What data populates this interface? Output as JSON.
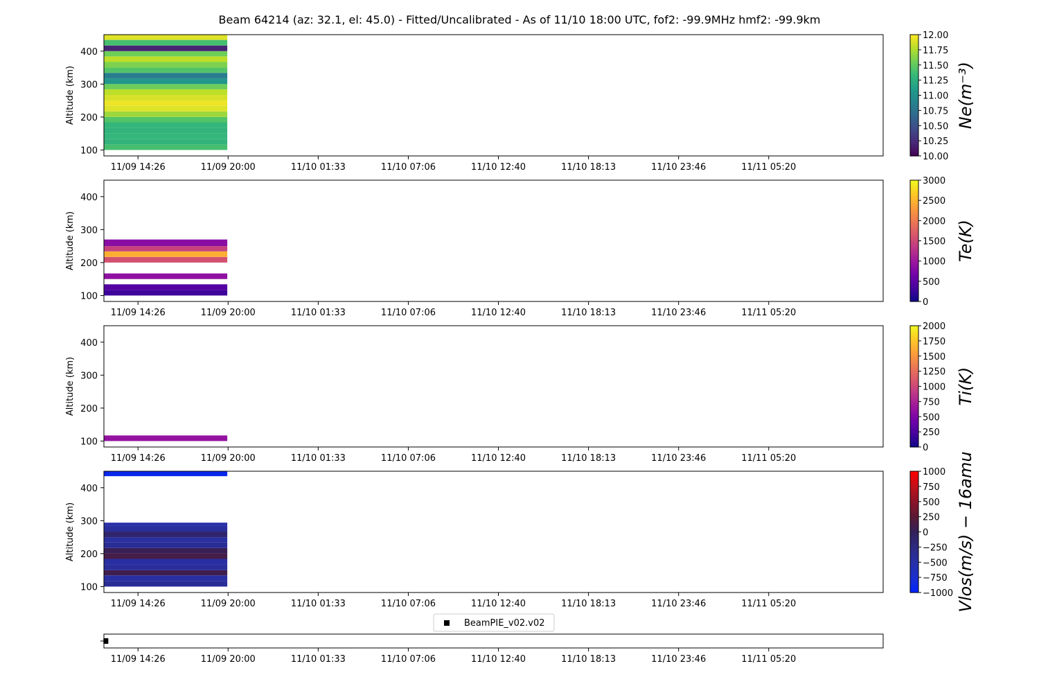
{
  "chart_data": {
    "type": "heatmap",
    "title": "Beam 64214 (az: 32.1, el: 45.0) - Fitted/Uncalibrated - As of 11/10 18:00 UTC, fof2: -99.9MHz  hmf2: -99.9km",
    "x_tick_labels": [
      "11/09 14:26",
      "11/09 20:00",
      "11/10 01:33",
      "11/10 07:06",
      "11/10 12:40",
      "11/10 18:13",
      "11/10 23:46",
      "11/11 05:20"
    ],
    "x_tick_hours": [
      2.1,
      7.65,
      13.2,
      18.75,
      24.3,
      29.85,
      35.4,
      40.95
    ],
    "x_range_hours": [
      0,
      48
    ],
    "data_span_hours": [
      0,
      7.6
    ],
    "ylabel": "Altitude (km)",
    "ylim": [
      82,
      450
    ],
    "y_ticks": [
      100,
      200,
      300,
      400
    ],
    "panels": [
      {
        "colorbar_label": "Ne(m⁻³)",
        "colormap": "viridis",
        "clim": [
          10,
          12
        ],
        "cb_ticks": [
          "10.00",
          "10.25",
          "10.50",
          "10.75",
          "11.00",
          "11.25",
          "11.50",
          "11.75",
          "12.00"
        ],
        "rows": [
          {
            "alt0": 100,
            "alt1": 117,
            "value": 11.4
          },
          {
            "alt0": 117,
            "alt1": 134,
            "value": 11.3
          },
          {
            "alt0": 134,
            "alt1": 150,
            "value": 11.32
          },
          {
            "alt0": 150,
            "alt1": 167,
            "value": 11.3
          },
          {
            "alt0": 167,
            "alt1": 184,
            "value": 11.32
          },
          {
            "alt0": 184,
            "alt1": 200,
            "value": 11.45
          },
          {
            "alt0": 200,
            "alt1": 217,
            "value": 11.7
          },
          {
            "alt0": 217,
            "alt1": 234,
            "value": 11.9
          },
          {
            "alt0": 234,
            "alt1": 250,
            "value": 11.95
          },
          {
            "alt0": 250,
            "alt1": 267,
            "value": 11.88
          },
          {
            "alt0": 267,
            "alt1": 284,
            "value": 11.8
          },
          {
            "alt0": 284,
            "alt1": 300,
            "value": 11.55
          },
          {
            "alt0": 300,
            "alt1": 317,
            "value": 11.05
          },
          {
            "alt0": 317,
            "alt1": 334,
            "value": 10.85
          },
          {
            "alt0": 334,
            "alt1": 350,
            "value": 11.45
          },
          {
            "alt0": 350,
            "alt1": 367,
            "value": 11.6
          },
          {
            "alt0": 367,
            "alt1": 384,
            "value": 11.8
          },
          {
            "alt0": 384,
            "alt1": 400,
            "value": 11.55
          },
          {
            "alt0": 400,
            "alt1": 417,
            "value": 10.2
          },
          {
            "alt0": 417,
            "alt1": 434,
            "value": 11.4
          },
          {
            "alt0": 434,
            "alt1": 450,
            "value": 11.9
          }
        ]
      },
      {
        "colorbar_label": "Te(K)",
        "colormap": "plasma",
        "clim": [
          0,
          3000
        ],
        "cb_ticks": [
          "0",
          "500",
          "1000",
          "1500",
          "2000",
          "2500",
          "3000"
        ],
        "rows": [
          {
            "alt0": 100,
            "alt1": 117,
            "value": 280
          },
          {
            "alt0": 117,
            "alt1": 134,
            "value": 450
          },
          {
            "alt0": 150,
            "alt1": 167,
            "value": 900
          },
          {
            "alt0": 200,
            "alt1": 217,
            "value": 1600
          },
          {
            "alt0": 217,
            "alt1": 234,
            "value": 2450
          },
          {
            "alt0": 234,
            "alt1": 250,
            "value": 1450
          },
          {
            "alt0": 250,
            "alt1": 270,
            "value": 850
          }
        ]
      },
      {
        "colorbar_label": "Ti(K)",
        "colormap": "plasma",
        "clim": [
          0,
          2000
        ],
        "cb_ticks": [
          "0",
          "250",
          "500",
          "750",
          "1000",
          "1250",
          "1500",
          "1750",
          "2000"
        ],
        "rows": [
          {
            "alt0": 100,
            "alt1": 117,
            "value": 620
          }
        ]
      },
      {
        "colorbar_label": "Vlos(m/s) − 16amu",
        "colormap": "bwr-dark",
        "clim": [
          -1000,
          1000
        ],
        "cb_ticks": [
          "−1000",
          "−750",
          "−500",
          "−250",
          "0",
          "250",
          "500",
          "750",
          "1000"
        ],
        "rows": [
          {
            "alt0": 100,
            "alt1": 117,
            "value": -380
          },
          {
            "alt0": 117,
            "alt1": 134,
            "value": -470
          },
          {
            "alt0": 134,
            "alt1": 150,
            "value": 80
          },
          {
            "alt0": 150,
            "alt1": 167,
            "value": -420
          },
          {
            "alt0": 167,
            "alt1": 184,
            "value": -460
          },
          {
            "alt0": 184,
            "alt1": 200,
            "value": 120
          },
          {
            "alt0": 200,
            "alt1": 217,
            "value": 40
          },
          {
            "alt0": 217,
            "alt1": 234,
            "value": -380
          },
          {
            "alt0": 234,
            "alt1": 250,
            "value": -440
          },
          {
            "alt0": 250,
            "alt1": 267,
            "value": -120
          },
          {
            "alt0": 267,
            "alt1": 284,
            "value": -420
          },
          {
            "alt0": 284,
            "alt1": 294,
            "value": -500
          },
          {
            "alt0": 435,
            "alt1": 450,
            "value": -900
          }
        ]
      }
    ],
    "status_strip": {
      "legend": "BeamPIE_v02.v02",
      "marker_hours": 0.1
    }
  }
}
